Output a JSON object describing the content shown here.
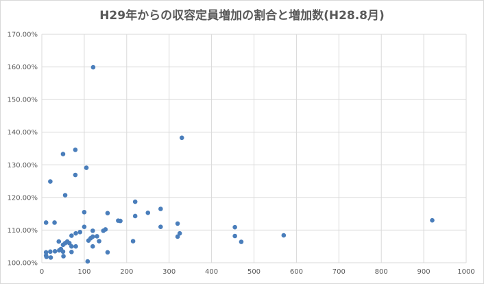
{
  "chart_data": {
    "type": "scatter",
    "title": "H29年からの収容定員増加の割合と増加数(H28.8月)",
    "xlabel": "",
    "ylabel": "",
    "xlim": [
      0,
      1000
    ],
    "ylim": [
      1.0,
      1.7
    ],
    "x_ticks": [
      0,
      100,
      200,
      300,
      400,
      500,
      600,
      700,
      800,
      900,
      1000
    ],
    "x_tick_labels": [
      "0",
      "100",
      "200",
      "300",
      "400",
      "500",
      "600",
      "700",
      "800",
      "900",
      "1000"
    ],
    "y_ticks": [
      1.0,
      1.1,
      1.2,
      1.3,
      1.4,
      1.5,
      1.6,
      1.7
    ],
    "y_tick_labels": [
      "100.00%",
      "110.00%",
      "120.00%",
      "130.00%",
      "140.00%",
      "150.00%",
      "160.00%",
      "170.00%"
    ],
    "grid": true,
    "legend": "none",
    "marker_color": "#4a7ebb",
    "points": [
      {
        "x": 10,
        "y": 1.123
      },
      {
        "x": 10,
        "y": 1.032
      },
      {
        "x": 10,
        "y": 1.022
      },
      {
        "x": 11,
        "y": 1.018
      },
      {
        "x": 20,
        "y": 1.249
      },
      {
        "x": 20,
        "y": 1.034
      },
      {
        "x": 21,
        "y": 1.016
      },
      {
        "x": 30,
        "y": 1.123
      },
      {
        "x": 31,
        "y": 1.035
      },
      {
        "x": 40,
        "y": 1.065
      },
      {
        "x": 41,
        "y": 1.038
      },
      {
        "x": 45,
        "y": 1.042
      },
      {
        "x": 50,
        "y": 1.333
      },
      {
        "x": 50,
        "y": 1.055
      },
      {
        "x": 50,
        "y": 1.034
      },
      {
        "x": 51,
        "y": 1.02
      },
      {
        "x": 55,
        "y": 1.207
      },
      {
        "x": 55,
        "y": 1.06
      },
      {
        "x": 60,
        "y": 1.065
      },
      {
        "x": 65,
        "y": 1.06
      },
      {
        "x": 70,
        "y": 1.083
      },
      {
        "x": 70,
        "y": 1.05
      },
      {
        "x": 70,
        "y": 1.033
      },
      {
        "x": 79,
        "y": 1.346
      },
      {
        "x": 79,
        "y": 1.269
      },
      {
        "x": 80,
        "y": 1.09
      },
      {
        "x": 80,
        "y": 1.05
      },
      {
        "x": 90,
        "y": 1.094
      },
      {
        "x": 100,
        "y": 1.155
      },
      {
        "x": 100,
        "y": 1.11
      },
      {
        "x": 105,
        "y": 1.291
      },
      {
        "x": 108,
        "y": 1.004
      },
      {
        "x": 110,
        "y": 1.068
      },
      {
        "x": 115,
        "y": 1.075
      },
      {
        "x": 120,
        "y": 1.098
      },
      {
        "x": 120,
        "y": 1.08
      },
      {
        "x": 120,
        "y": 1.05
      },
      {
        "x": 121,
        "y": 1.599
      },
      {
        "x": 130,
        "y": 1.081
      },
      {
        "x": 135,
        "y": 1.066
      },
      {
        "x": 145,
        "y": 1.098
      },
      {
        "x": 150,
        "y": 1.102
      },
      {
        "x": 155,
        "y": 1.152
      },
      {
        "x": 155,
        "y": 1.032
      },
      {
        "x": 180,
        "y": 1.129
      },
      {
        "x": 185,
        "y": 1.128
      },
      {
        "x": 215,
        "y": 1.066
      },
      {
        "x": 220,
        "y": 1.187
      },
      {
        "x": 220,
        "y": 1.143
      },
      {
        "x": 250,
        "y": 1.153
      },
      {
        "x": 280,
        "y": 1.165
      },
      {
        "x": 280,
        "y": 1.11
      },
      {
        "x": 320,
        "y": 1.08
      },
      {
        "x": 320,
        "y": 1.12
      },
      {
        "x": 325,
        "y": 1.09
      },
      {
        "x": 330,
        "y": 1.383
      },
      {
        "x": 455,
        "y": 1.109
      },
      {
        "x": 455,
        "y": 1.082
      },
      {
        "x": 470,
        "y": 1.064
      },
      {
        "x": 570,
        "y": 1.084
      },
      {
        "x": 920,
        "y": 1.13
      }
    ]
  }
}
